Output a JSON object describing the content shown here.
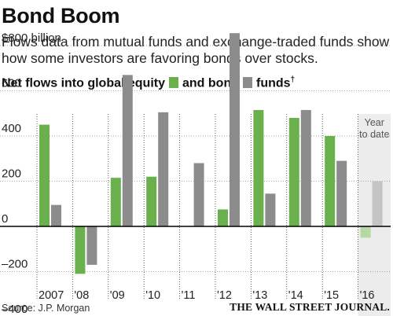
{
  "title": "Bond Boom",
  "subtitle": "Flows data from mutual funds and exchange-traded funds show how some investors are favoring bonds over stocks.",
  "legend": {
    "prefix": "Net flows into global equity",
    "mid": "and bond",
    "suffix": "funds",
    "dagger": "†"
  },
  "source": "Source: J.P. Morgan",
  "publisher": "THE WALL STREET JOURNAL.",
  "colors": {
    "equity": "#6ab04c",
    "bond": "#8c8c8c",
    "equity_ytd": "#b4d9a2",
    "bond_ytd": "#c4c4c4",
    "ytd_shade": "#ececec"
  },
  "chart_data": {
    "type": "bar",
    "categories": [
      "2007",
      "'08",
      "'09",
      "'10",
      "'11",
      "'12",
      "'13",
      "'14",
      "'15",
      "'16"
    ],
    "series": [
      {
        "name": "equity",
        "values": [
          450,
          -210,
          215,
          220,
          0,
          75,
          515,
          480,
          400,
          -50
        ]
      },
      {
        "name": "bond",
        "values": [
          95,
          -170,
          670,
          505,
          280,
          855,
          145,
          515,
          290,
          200
        ]
      }
    ],
    "y_unit": "billion",
    "ylim": [
      -400,
      870
    ],
    "yticks": [
      -400,
      -200,
      0,
      200,
      400,
      600,
      800
    ],
    "ytick_labels": [
      "–400",
      "–200",
      "0",
      "200",
      "400",
      "600",
      "$800 billion"
    ],
    "highlight_label_line1": "Year",
    "highlight_label_line2": "to date",
    "grid": true
  }
}
